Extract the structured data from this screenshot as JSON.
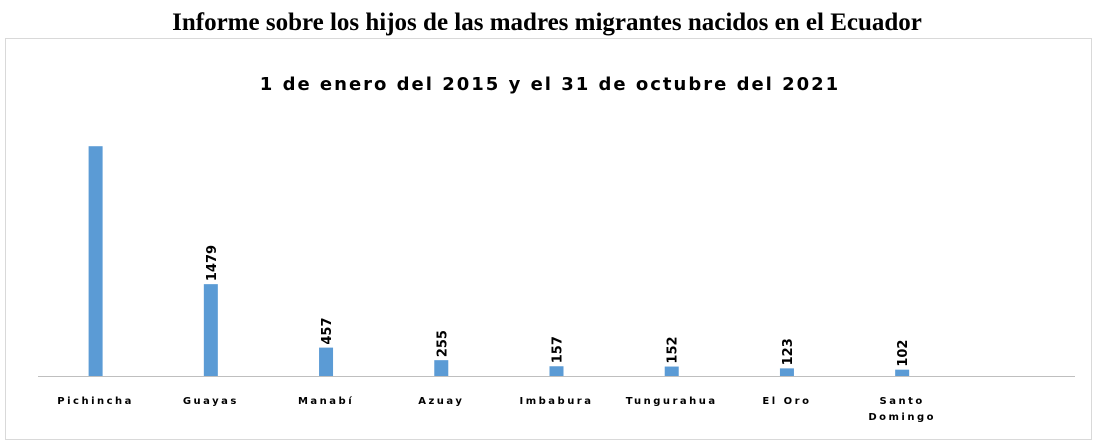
{
  "chart_data": {
    "type": "bar",
    "title": "Informe sobre los hijos de las madres migrantes nacidos en el Ecuador",
    "subtitle": "1 de enero del 2015 y el 31 de octubre del 2021",
    "categories": [
      "Pichincha",
      "Guayas",
      "Manabí",
      "Azuay",
      "Imbabura",
      "Tungurahua",
      "El Oro",
      "Santo Domingo",
      null
    ],
    "values": [
      3700,
      1479,
      457,
      255,
      157,
      152,
      123,
      102,
      null
    ],
    "value_labels": [
      null,
      "1479",
      "457",
      "255",
      "157",
      "152",
      "123",
      "102",
      null
    ],
    "color": "#5b9bd5",
    "ylim": [
      0,
      3800
    ]
  }
}
